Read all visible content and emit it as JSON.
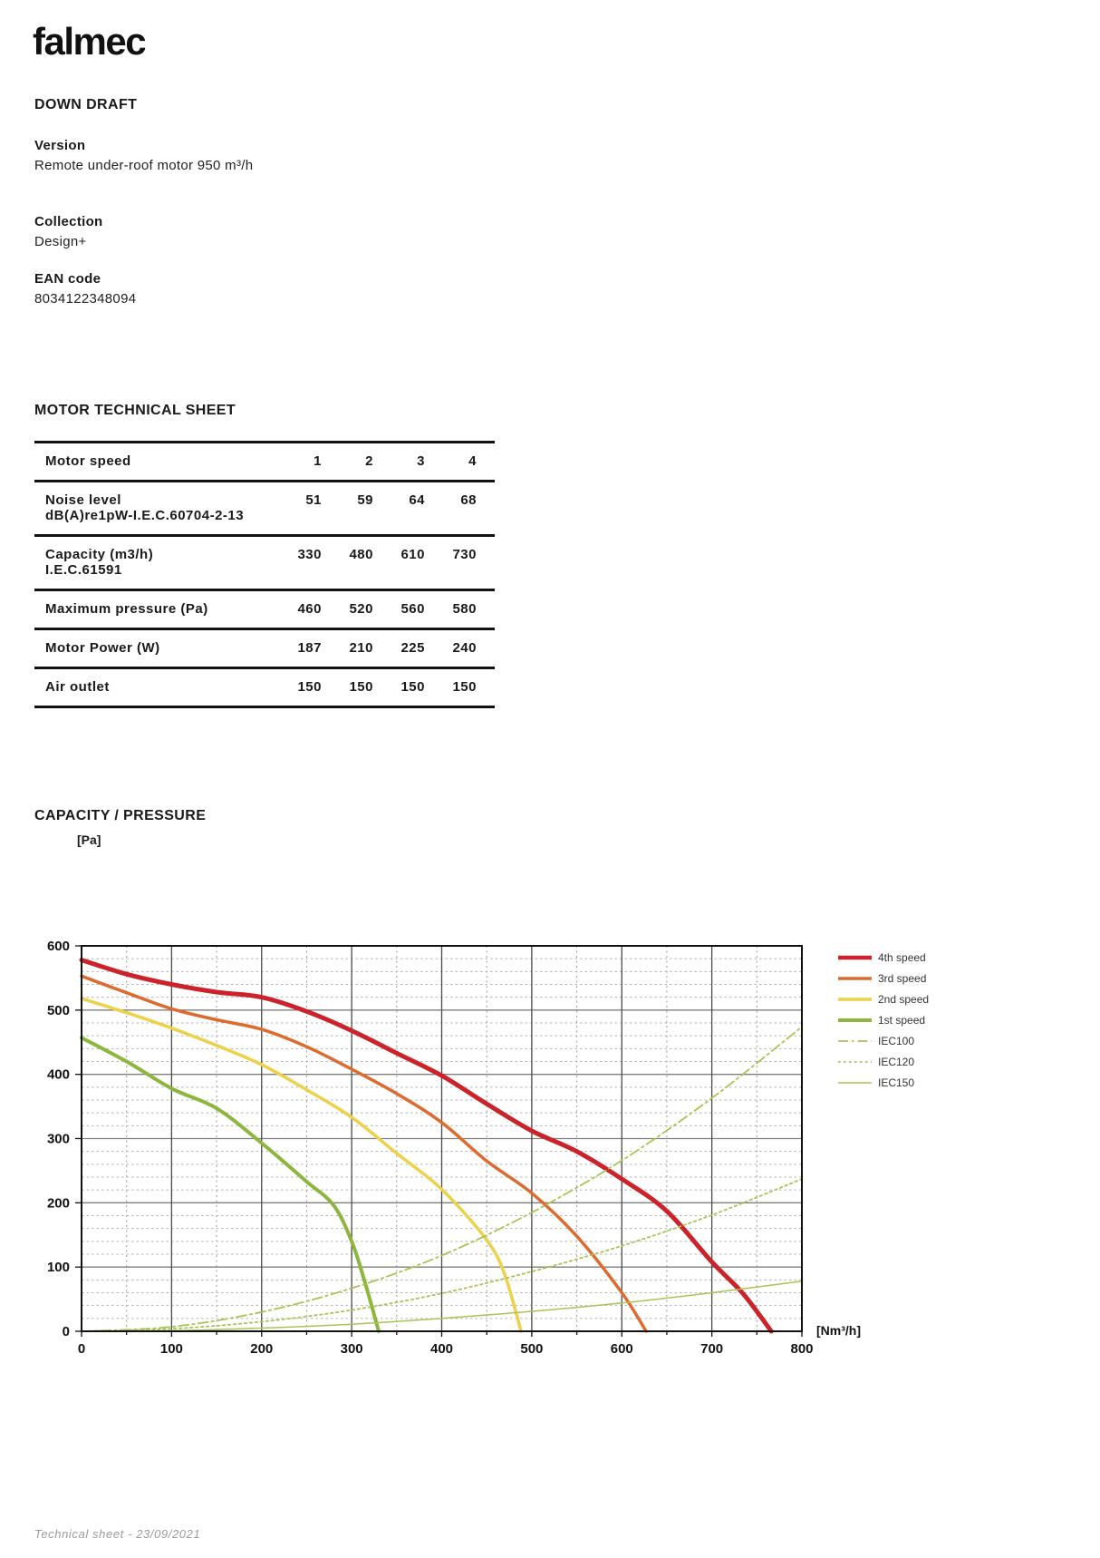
{
  "brand": {
    "logo_text": "falmec"
  },
  "product": {
    "title": "DOWN DRAFT",
    "version_label": "Version",
    "version_value": "Remote under-roof motor 950 m³/h",
    "collection_label": "Collection",
    "collection_value": "Design+",
    "ean_label": "EAN code",
    "ean_value": "8034122348094"
  },
  "table": {
    "title": "MOTOR TECHNICAL SHEET",
    "header_label": "Motor speed",
    "header_columns": [
      "1",
      "2",
      "3",
      "4"
    ],
    "rows": [
      {
        "label": "Noise level",
        "sublabel": "dB(A)re1pW-I.E.C.60704-2-13",
        "values": [
          "51",
          "59",
          "64",
          "68"
        ]
      },
      {
        "label": "Capacity (m3/h)",
        "sublabel": "I.E.C.61591",
        "values": [
          "330",
          "480",
          "610",
          "730"
        ]
      },
      {
        "label": "Maximum pressure (Pa)",
        "sublabel": "",
        "values": [
          "460",
          "520",
          "560",
          "580"
        ]
      },
      {
        "label": "Motor Power (W)",
        "sublabel": "",
        "values": [
          "187",
          "210",
          "225",
          "240"
        ]
      },
      {
        "label": "Air outlet",
        "sublabel": "",
        "values": [
          "150",
          "150",
          "150",
          "150"
        ]
      }
    ]
  },
  "chart_data": {
    "type": "line",
    "title": "CAPACITY / PRESSURE",
    "ylabel": "[Pa]",
    "xlabel": "[Nm³/h]",
    "xlim": [
      0,
      800
    ],
    "ylim": [
      0,
      600
    ],
    "x_major_step": 100,
    "x_minor_step": 50,
    "y_major_step": 100,
    "y_minor_step": 20,
    "grid": true,
    "legend_position": "right",
    "x_ticks": [
      "0",
      "100",
      "200",
      "300",
      "400",
      "500",
      "600",
      "700",
      "800"
    ],
    "y_ticks": [
      "0",
      "100",
      "200",
      "300",
      "400",
      "500",
      "600"
    ],
    "series": [
      {
        "name": "4th speed",
        "color": "#cc2229",
        "width": 5,
        "dash": "solid",
        "points": [
          [
            0,
            578
          ],
          [
            50,
            556
          ],
          [
            100,
            540
          ],
          [
            150,
            528
          ],
          [
            200,
            520
          ],
          [
            250,
            498
          ],
          [
            300,
            468
          ],
          [
            350,
            433
          ],
          [
            400,
            398
          ],
          [
            450,
            354
          ],
          [
            500,
            312
          ],
          [
            550,
            280
          ],
          [
            600,
            237
          ],
          [
            650,
            187
          ],
          [
            700,
            108
          ],
          [
            735,
            58
          ],
          [
            766,
            0
          ]
        ]
      },
      {
        "name": "3rd speed",
        "color": "#dd6b2f",
        "width": 3.5,
        "dash": "solid",
        "points": [
          [
            0,
            553
          ],
          [
            50,
            527
          ],
          [
            100,
            502
          ],
          [
            150,
            485
          ],
          [
            200,
            470
          ],
          [
            250,
            443
          ],
          [
            300,
            408
          ],
          [
            350,
            370
          ],
          [
            400,
            325
          ],
          [
            450,
            265
          ],
          [
            500,
            215
          ],
          [
            550,
            148
          ],
          [
            600,
            60
          ],
          [
            627,
            0
          ]
        ]
      },
      {
        "name": "2nd speed",
        "color": "#edd14b",
        "width": 3.5,
        "dash": "solid",
        "points": [
          [
            0,
            518
          ],
          [
            50,
            496
          ],
          [
            100,
            472
          ],
          [
            150,
            445
          ],
          [
            200,
            415
          ],
          [
            250,
            376
          ],
          [
            300,
            333
          ],
          [
            350,
            277
          ],
          [
            400,
            221
          ],
          [
            450,
            142
          ],
          [
            470,
            88
          ],
          [
            488,
            0
          ]
        ]
      },
      {
        "name": "1st speed",
        "color": "#8cb63d",
        "width": 4,
        "dash": "solid",
        "points": [
          [
            0,
            457
          ],
          [
            50,
            420
          ],
          [
            100,
            378
          ],
          [
            150,
            347
          ],
          [
            200,
            293
          ],
          [
            250,
            233
          ],
          [
            280,
            196
          ],
          [
            300,
            140
          ],
          [
            315,
            75
          ],
          [
            330,
            0
          ]
        ]
      },
      {
        "name": "IEC100",
        "color": "#a9c455",
        "width": 1.8,
        "dash": "dashdot",
        "points": [
          [
            0,
            0
          ],
          [
            100,
            7
          ],
          [
            200,
            30
          ],
          [
            300,
            67
          ],
          [
            400,
            118
          ],
          [
            500,
            185
          ],
          [
            600,
            266
          ],
          [
            700,
            363
          ],
          [
            800,
            474
          ]
        ]
      },
      {
        "name": "IEC120",
        "color": "#a9c455",
        "width": 1.8,
        "dash": "dotted",
        "points": [
          [
            0,
            0
          ],
          [
            100,
            4
          ],
          [
            200,
            15
          ],
          [
            300,
            33
          ],
          [
            400,
            59
          ],
          [
            500,
            93
          ],
          [
            600,
            133
          ],
          [
            700,
            181
          ],
          [
            800,
            237
          ]
        ]
      },
      {
        "name": "IEC150",
        "color": "#a9c455",
        "width": 1.5,
        "dash": "solid",
        "points": [
          [
            0,
            0
          ],
          [
            100,
            1
          ],
          [
            200,
            5
          ],
          [
            300,
            11
          ],
          [
            400,
            20
          ],
          [
            500,
            31
          ],
          [
            600,
            44
          ],
          [
            700,
            60
          ],
          [
            800,
            78
          ]
        ]
      }
    ]
  },
  "footer": {
    "text": "Technical sheet - 23/09/2021"
  }
}
